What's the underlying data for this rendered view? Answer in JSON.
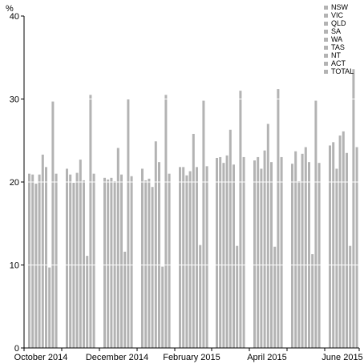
{
  "chart_data": {
    "type": "bar",
    "unit": "%",
    "ylim": [
      0,
      40
    ],
    "yticks": [
      0,
      10,
      20,
      30,
      40
    ],
    "grid": true,
    "legend_position": "top-right",
    "series_names": [
      "NSW",
      "VIC",
      "QLD",
      "SA",
      "WA",
      "TAS",
      "NT",
      "ACT",
      "TOTAL"
    ],
    "x_tick_labels": [
      "October 2014",
      "December 2014",
      "February 2015",
      "April 2015",
      "June 2015"
    ],
    "colors": {
      "bars": "#b3b3b3",
      "grid": "#ffffff",
      "axis": "#000000",
      "legend_swatch": "#b3b3b3"
    },
    "groups": [
      {
        "values": [
          21.0,
          20.9,
          19.8,
          20.9,
          23.3,
          21.8,
          9.7,
          29.7,
          21.0
        ]
      },
      {
        "values": [
          21.6,
          20.9,
          19.9,
          21.1,
          22.7,
          20.2,
          11.1,
          30.5,
          21.0
        ]
      },
      {
        "values": [
          20.5,
          20.3,
          20.5,
          20.1,
          24.1,
          20.9,
          11.6,
          30.0,
          20.7
        ]
      },
      {
        "values": [
          21.6,
          20.2,
          20.4,
          19.4,
          24.9,
          22.4,
          9.8,
          30.5,
          21.0
        ]
      },
      {
        "values": [
          21.8,
          21.8,
          20.8,
          21.3,
          25.8,
          21.8,
          12.4,
          29.8,
          21.9
        ]
      },
      {
        "values": [
          22.9,
          23.0,
          22.3,
          23.2,
          26.3,
          22.1,
          12.3,
          31.0,
          23.0
        ]
      },
      {
        "values": [
          22.6,
          23.0,
          21.6,
          23.8,
          27.0,
          22.4,
          12.2,
          31.2,
          23.0
        ]
      },
      {
        "values": [
          22.2,
          23.7,
          20.1,
          23.4,
          24.2,
          22.4,
          11.3,
          29.8,
          22.3
        ]
      },
      {
        "values": [
          24.4,
          24.8,
          21.6,
          25.6,
          26.1,
          23.5,
          12.3,
          33.6,
          24.2
        ]
      }
    ]
  }
}
